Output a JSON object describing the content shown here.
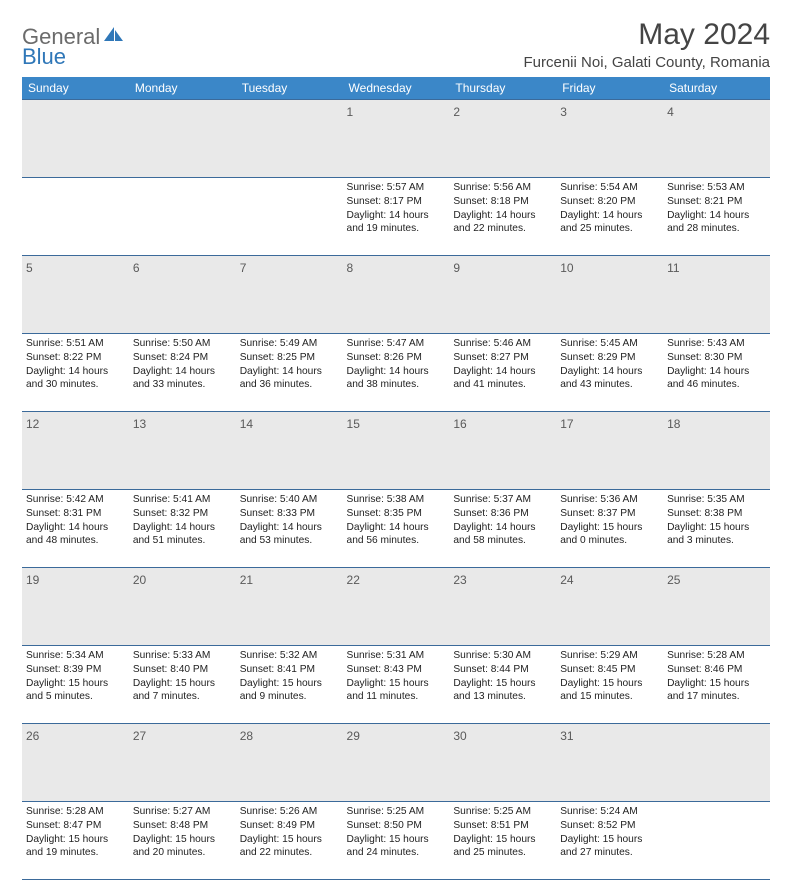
{
  "logo": {
    "part1": "General",
    "part2": "Blue"
  },
  "title": "May 2024",
  "location": "Furcenii Noi, Galati County, Romania",
  "colors": {
    "header_bg": "#3b87c8",
    "header_text": "#ffffff",
    "daynum_bg": "#e9e9e9",
    "border": "#3b6a9a",
    "logo_gray": "#6b6b6b",
    "logo_blue": "#2f77b8"
  },
  "weekdays": [
    "Sunday",
    "Monday",
    "Tuesday",
    "Wednesday",
    "Thursday",
    "Friday",
    "Saturday"
  ],
  "weeks": [
    {
      "nums": [
        "",
        "",
        "",
        "1",
        "2",
        "3",
        "4"
      ],
      "cells": [
        null,
        null,
        null,
        {
          "sunrise": "Sunrise: 5:57 AM",
          "sunset": "Sunset: 8:17 PM",
          "day1": "Daylight: 14 hours",
          "day2": "and 19 minutes."
        },
        {
          "sunrise": "Sunrise: 5:56 AM",
          "sunset": "Sunset: 8:18 PM",
          "day1": "Daylight: 14 hours",
          "day2": "and 22 minutes."
        },
        {
          "sunrise": "Sunrise: 5:54 AM",
          "sunset": "Sunset: 8:20 PM",
          "day1": "Daylight: 14 hours",
          "day2": "and 25 minutes."
        },
        {
          "sunrise": "Sunrise: 5:53 AM",
          "sunset": "Sunset: 8:21 PM",
          "day1": "Daylight: 14 hours",
          "day2": "and 28 minutes."
        }
      ]
    },
    {
      "nums": [
        "5",
        "6",
        "7",
        "8",
        "9",
        "10",
        "11"
      ],
      "cells": [
        {
          "sunrise": "Sunrise: 5:51 AM",
          "sunset": "Sunset: 8:22 PM",
          "day1": "Daylight: 14 hours",
          "day2": "and 30 minutes."
        },
        {
          "sunrise": "Sunrise: 5:50 AM",
          "sunset": "Sunset: 8:24 PM",
          "day1": "Daylight: 14 hours",
          "day2": "and 33 minutes."
        },
        {
          "sunrise": "Sunrise: 5:49 AM",
          "sunset": "Sunset: 8:25 PM",
          "day1": "Daylight: 14 hours",
          "day2": "and 36 minutes."
        },
        {
          "sunrise": "Sunrise: 5:47 AM",
          "sunset": "Sunset: 8:26 PM",
          "day1": "Daylight: 14 hours",
          "day2": "and 38 minutes."
        },
        {
          "sunrise": "Sunrise: 5:46 AM",
          "sunset": "Sunset: 8:27 PM",
          "day1": "Daylight: 14 hours",
          "day2": "and 41 minutes."
        },
        {
          "sunrise": "Sunrise: 5:45 AM",
          "sunset": "Sunset: 8:29 PM",
          "day1": "Daylight: 14 hours",
          "day2": "and 43 minutes."
        },
        {
          "sunrise": "Sunrise: 5:43 AM",
          "sunset": "Sunset: 8:30 PM",
          "day1": "Daylight: 14 hours",
          "day2": "and 46 minutes."
        }
      ]
    },
    {
      "nums": [
        "12",
        "13",
        "14",
        "15",
        "16",
        "17",
        "18"
      ],
      "cells": [
        {
          "sunrise": "Sunrise: 5:42 AM",
          "sunset": "Sunset: 8:31 PM",
          "day1": "Daylight: 14 hours",
          "day2": "and 48 minutes."
        },
        {
          "sunrise": "Sunrise: 5:41 AM",
          "sunset": "Sunset: 8:32 PM",
          "day1": "Daylight: 14 hours",
          "day2": "and 51 minutes."
        },
        {
          "sunrise": "Sunrise: 5:40 AM",
          "sunset": "Sunset: 8:33 PM",
          "day1": "Daylight: 14 hours",
          "day2": "and 53 minutes."
        },
        {
          "sunrise": "Sunrise: 5:38 AM",
          "sunset": "Sunset: 8:35 PM",
          "day1": "Daylight: 14 hours",
          "day2": "and 56 minutes."
        },
        {
          "sunrise": "Sunrise: 5:37 AM",
          "sunset": "Sunset: 8:36 PM",
          "day1": "Daylight: 14 hours",
          "day2": "and 58 minutes."
        },
        {
          "sunrise": "Sunrise: 5:36 AM",
          "sunset": "Sunset: 8:37 PM",
          "day1": "Daylight: 15 hours",
          "day2": "and 0 minutes."
        },
        {
          "sunrise": "Sunrise: 5:35 AM",
          "sunset": "Sunset: 8:38 PM",
          "day1": "Daylight: 15 hours",
          "day2": "and 3 minutes."
        }
      ]
    },
    {
      "nums": [
        "19",
        "20",
        "21",
        "22",
        "23",
        "24",
        "25"
      ],
      "cells": [
        {
          "sunrise": "Sunrise: 5:34 AM",
          "sunset": "Sunset: 8:39 PM",
          "day1": "Daylight: 15 hours",
          "day2": "and 5 minutes."
        },
        {
          "sunrise": "Sunrise: 5:33 AM",
          "sunset": "Sunset: 8:40 PM",
          "day1": "Daylight: 15 hours",
          "day2": "and 7 minutes."
        },
        {
          "sunrise": "Sunrise: 5:32 AM",
          "sunset": "Sunset: 8:41 PM",
          "day1": "Daylight: 15 hours",
          "day2": "and 9 minutes."
        },
        {
          "sunrise": "Sunrise: 5:31 AM",
          "sunset": "Sunset: 8:43 PM",
          "day1": "Daylight: 15 hours",
          "day2": "and 11 minutes."
        },
        {
          "sunrise": "Sunrise: 5:30 AM",
          "sunset": "Sunset: 8:44 PM",
          "day1": "Daylight: 15 hours",
          "day2": "and 13 minutes."
        },
        {
          "sunrise": "Sunrise: 5:29 AM",
          "sunset": "Sunset: 8:45 PM",
          "day1": "Daylight: 15 hours",
          "day2": "and 15 minutes."
        },
        {
          "sunrise": "Sunrise: 5:28 AM",
          "sunset": "Sunset: 8:46 PM",
          "day1": "Daylight: 15 hours",
          "day2": "and 17 minutes."
        }
      ]
    },
    {
      "nums": [
        "26",
        "27",
        "28",
        "29",
        "30",
        "31",
        ""
      ],
      "cells": [
        {
          "sunrise": "Sunrise: 5:28 AM",
          "sunset": "Sunset: 8:47 PM",
          "day1": "Daylight: 15 hours",
          "day2": "and 19 minutes."
        },
        {
          "sunrise": "Sunrise: 5:27 AM",
          "sunset": "Sunset: 8:48 PM",
          "day1": "Daylight: 15 hours",
          "day2": "and 20 minutes."
        },
        {
          "sunrise": "Sunrise: 5:26 AM",
          "sunset": "Sunset: 8:49 PM",
          "day1": "Daylight: 15 hours",
          "day2": "and 22 minutes."
        },
        {
          "sunrise": "Sunrise: 5:25 AM",
          "sunset": "Sunset: 8:50 PM",
          "day1": "Daylight: 15 hours",
          "day2": "and 24 minutes."
        },
        {
          "sunrise": "Sunrise: 5:25 AM",
          "sunset": "Sunset: 8:51 PM",
          "day1": "Daylight: 15 hours",
          "day2": "and 25 minutes."
        },
        {
          "sunrise": "Sunrise: 5:24 AM",
          "sunset": "Sunset: 8:52 PM",
          "day1": "Daylight: 15 hours",
          "day2": "and 27 minutes."
        },
        null
      ]
    }
  ]
}
